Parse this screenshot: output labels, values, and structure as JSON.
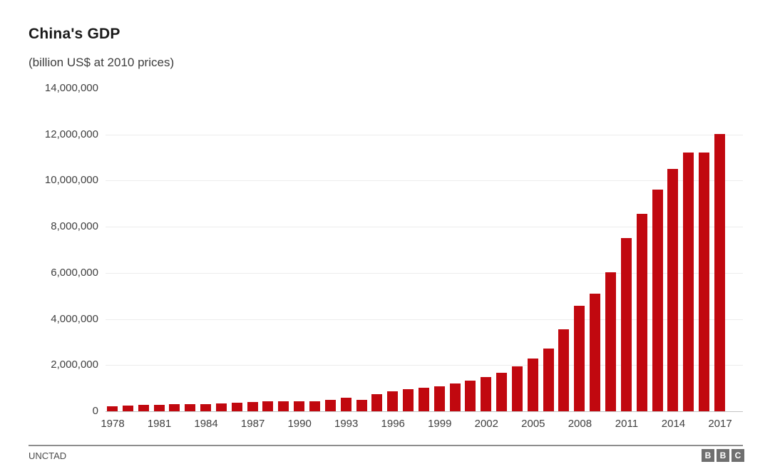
{
  "header": {
    "title": "China's GDP",
    "subtitle": "(billion US$ at 2010 prices)"
  },
  "footer": {
    "source": "UNCTAD",
    "logo_letters": [
      "B",
      "B",
      "C"
    ]
  },
  "colors": {
    "bar": "#c1080f",
    "grid": "#ececec",
    "axis_text": "#404040",
    "baseline": "#c4c4c4",
    "footer_line": "#8d8d8d",
    "logo_background": "#6f6f6f"
  },
  "chart_data": {
    "type": "bar",
    "title": "China's GDP",
    "subtitle": "(billion US$ at 2010 prices)",
    "source": "UNCTAD",
    "categories": [
      1978,
      1979,
      1980,
      1981,
      1982,
      1983,
      1984,
      1985,
      1986,
      1987,
      1988,
      1989,
      1990,
      1991,
      1992,
      1993,
      1994,
      1995,
      1996,
      1997,
      1998,
      1999,
      2000,
      2001,
      2002,
      2003,
      2004,
      2005,
      2006,
      2007,
      2008,
      2009,
      2010,
      2011,
      2012,
      2013,
      2014,
      2015,
      2016,
      2017
    ],
    "values": [
      220000,
      250000,
      270000,
      290000,
      300000,
      310000,
      320000,
      340000,
      360000,
      390000,
      420000,
      430000,
      420000,
      440000,
      490000,
      580000,
      500000,
      730000,
      860000,
      960000,
      1030000,
      1090000,
      1210000,
      1340000,
      1470000,
      1660000,
      1940000,
      2290000,
      2730000,
      3550000,
      4570000,
      5100000,
      6030000,
      7510000,
      8550000,
      9600000,
      10520000,
      11230000,
      11220000,
      12010000
    ],
    "x_tick_labels": [
      "1978",
      "1981",
      "1984",
      "1987",
      "1990",
      "1993",
      "1996",
      "1999",
      "2002",
      "2005",
      "2008",
      "2011",
      "2014",
      "2017"
    ],
    "x_tick_interval": 3,
    "y_ticks": [
      0,
      2000000,
      4000000,
      6000000,
      8000000,
      10000000,
      12000000,
      14000000
    ],
    "y_tick_labels": [
      "0",
      "2,000,000",
      "4,000,000",
      "6,000,000",
      "8,000,000",
      "10,000,000",
      "12,000,000",
      "14,000,000"
    ],
    "ylim": [
      0,
      14000000
    ],
    "grid": "horizontal",
    "legend": "none",
    "bar_color": "#c1080f"
  }
}
